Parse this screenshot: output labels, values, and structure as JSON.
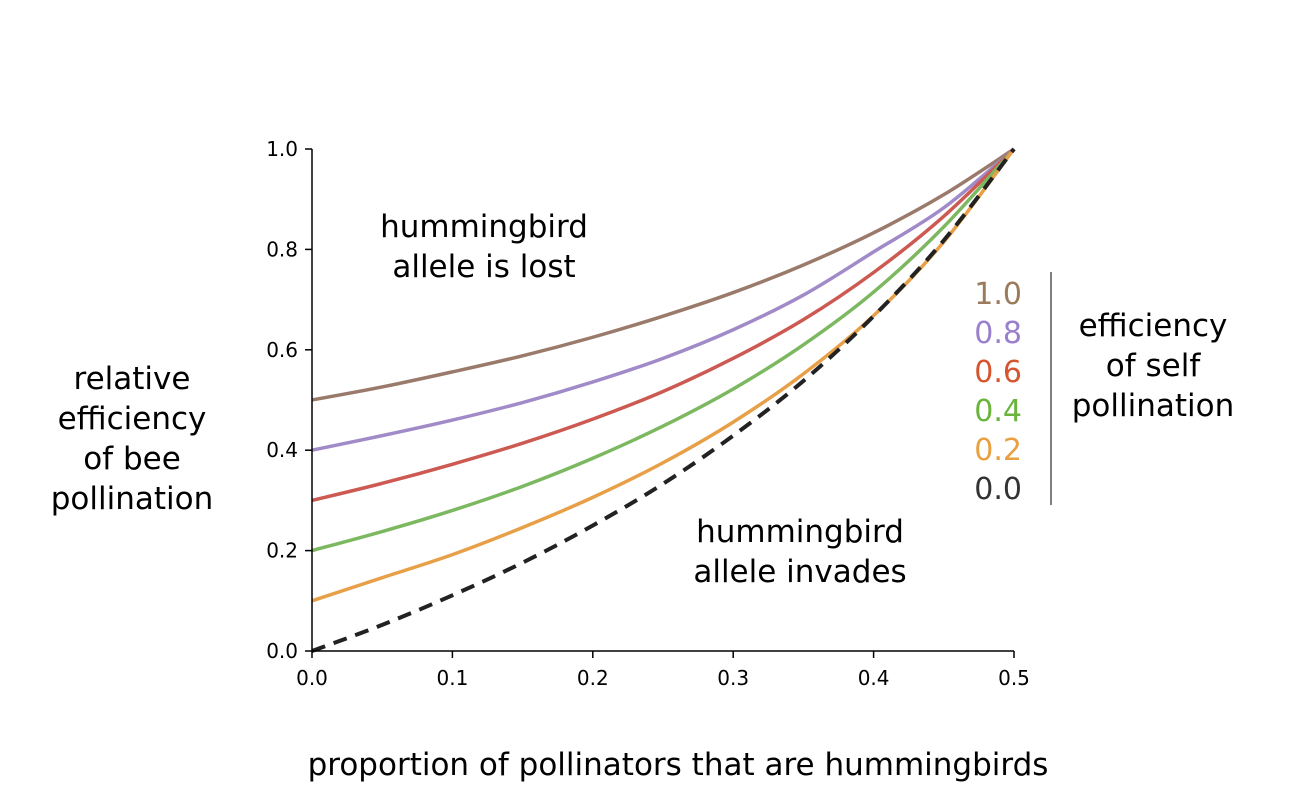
{
  "chart_data": {
    "type": "line",
    "xlabel": "proportion of pollinators that are hummingbirds",
    "ylabel_lines": [
      "relative",
      "efficiency",
      "of bee",
      "pollination"
    ],
    "xlim": [
      0,
      0.5
    ],
    "ylim": [
      0,
      1
    ],
    "xticks": [
      "0.0",
      "0.1",
      "0.2",
      "0.3",
      "0.4",
      "0.5"
    ],
    "yticks": [
      "0.0",
      "0.2",
      "0.4",
      "0.6",
      "0.8",
      "1.0"
    ],
    "grid": false,
    "x": [
      0,
      0.05,
      0.1,
      0.15,
      0.2,
      0.25,
      0.3,
      0.35,
      0.4,
      0.45,
      0.5
    ],
    "series": [
      {
        "name": "1.0",
        "color": "#9a7a6a",
        "dashed": false,
        "values": [
          0.5,
          0.526,
          0.556,
          0.588,
          0.625,
          0.667,
          0.714,
          0.769,
          0.833,
          0.909,
          1.0
        ]
      },
      {
        "name": "0.8",
        "color": "#a08ac8",
        "dashed": false,
        "values": [
          0.4,
          0.429,
          0.46,
          0.495,
          0.536,
          0.583,
          0.64,
          0.709,
          0.795,
          0.883,
          1.0
        ]
      },
      {
        "name": "0.6",
        "color": "#cc5a52",
        "dashed": false,
        "values": [
          0.3,
          0.334,
          0.372,
          0.414,
          0.462,
          0.517,
          0.583,
          0.66,
          0.754,
          0.866,
          1.0
        ]
      },
      {
        "name": "0.4",
        "color": "#7cb860",
        "dashed": false,
        "values": [
          0.2,
          0.238,
          0.28,
          0.328,
          0.384,
          0.448,
          0.522,
          0.61,
          0.715,
          0.845,
          1.0
        ]
      },
      {
        "name": "0.2",
        "color": "#e8a048",
        "dashed": false,
        "values": [
          0.1,
          0.146,
          0.192,
          0.246,
          0.306,
          0.375,
          0.456,
          0.552,
          0.668,
          0.815,
          1.0
        ]
      },
      {
        "name": "0.0",
        "color": "#222222",
        "dashed": true,
        "values": [
          0.0,
          0.052,
          0.111,
          0.176,
          0.25,
          0.333,
          0.429,
          0.538,
          0.667,
          0.818,
          1.0
        ]
      }
    ],
    "annotations": {
      "lost": [
        "hummingbird",
        "allele is lost"
      ],
      "invades": [
        "hummingbird",
        "allele invades"
      ]
    },
    "legend": {
      "placement": "right",
      "title_lines": [
        "efficiency",
        "of self",
        "pollination"
      ],
      "entries": [
        {
          "label": "1.0",
          "color": "#9a7a5a"
        },
        {
          "label": "0.8",
          "color": "#9a80cc"
        },
        {
          "label": "0.6",
          "color": "#d6552e"
        },
        {
          "label": "0.4",
          "color": "#6ab43c"
        },
        {
          "label": "0.2",
          "color": "#e8a040"
        },
        {
          "label": "0.0",
          "color": "#333333"
        }
      ]
    }
  }
}
